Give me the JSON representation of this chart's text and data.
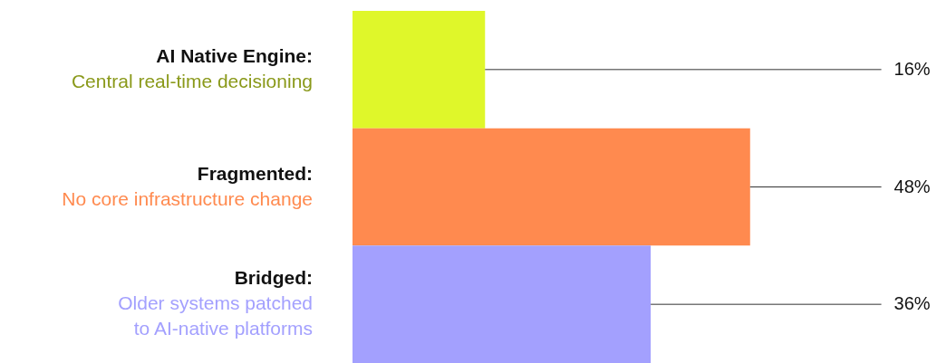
{
  "chart_data": {
    "type": "bar",
    "orientation": "horizontal",
    "categories": [
      "AI Native Engine:\nCentral real-time decisioning",
      "Fragmented:\nNo core infrastructure change",
      "Bridged:\nOlder systems patched\nto AI-native platforms"
    ],
    "values": [
      16,
      48,
      36
    ],
    "colors": [
      "#dff72a",
      "#ff8a4f",
      "#a3a0fe"
    ],
    "value_labels": [
      "16%",
      "48%",
      "36%"
    ]
  }
}
